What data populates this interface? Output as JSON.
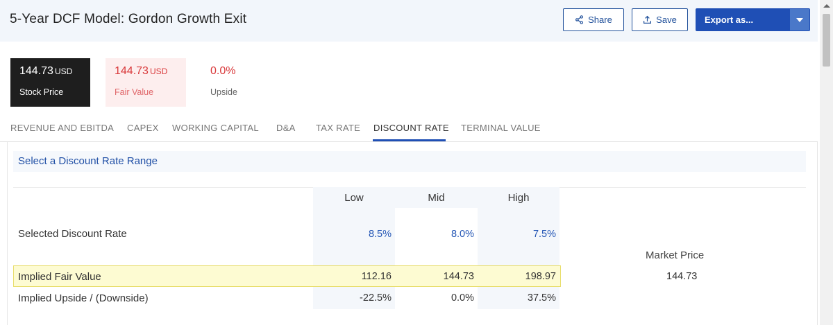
{
  "header": {
    "title": "5-Year DCF Model: Gordon Growth Exit",
    "share_label": "Share",
    "save_label": "Save",
    "export_label": "Export as..."
  },
  "summary": {
    "stock_price": {
      "value": "144.73",
      "unit": "USD",
      "label": "Stock Price"
    },
    "fair_value": {
      "value": "144.73",
      "unit": "USD",
      "label": "Fair Value"
    },
    "upside": {
      "value": "0.0%",
      "label": "Upside"
    }
  },
  "tabs": [
    {
      "label": "REVENUE AND EBITDA"
    },
    {
      "label": "CAPEX"
    },
    {
      "label": "WORKING CAPITAL"
    },
    {
      "label": "D&A"
    },
    {
      "label": "TAX RATE"
    },
    {
      "label": "DISCOUNT RATE"
    },
    {
      "label": "TERMINAL VALUE"
    }
  ],
  "active_tab": "DISCOUNT RATE",
  "section": {
    "title": "Select a Discount Rate Range"
  },
  "table": {
    "columns": [
      "Low",
      "Mid",
      "High"
    ],
    "rows": {
      "discount_rate": {
        "label": "Selected Discount Rate",
        "values": [
          "8.5%",
          "8.0%",
          "7.5%"
        ]
      },
      "fair_value": {
        "label": "Implied Fair Value",
        "values": [
          "112.16",
          "144.73",
          "198.97"
        ]
      },
      "upside": {
        "label": "Implied Upside / (Downside)",
        "values": [
          "-22.5%",
          "0.0%",
          "37.5%"
        ]
      }
    }
  },
  "market": {
    "label": "Market Price",
    "value": "144.73"
  },
  "colors": {
    "accent": "#1f4fb5",
    "negative": "#d9393b",
    "highlight": "#fdfbd2"
  }
}
